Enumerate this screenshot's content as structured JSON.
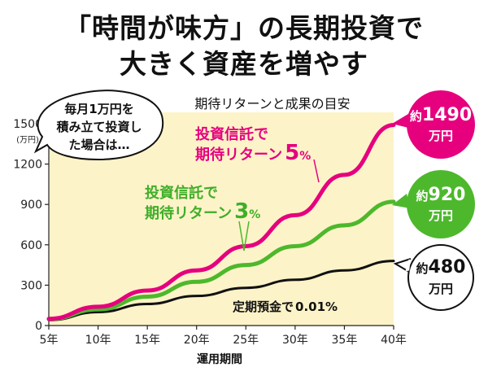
{
  "header": {
    "line1": "「時間が味方」の長期投資で",
    "line2": "大きく資産を増やす"
  },
  "note_bubble": {
    "line1": "毎月1万円を",
    "line2": "積み立て投資し",
    "line3": "た場合は…"
  },
  "chart_data": {
    "type": "line",
    "title": "期待リターンと成果の目安",
    "xlabel": "運用期間",
    "ylabel": "(万円)",
    "x": [
      5,
      10,
      15,
      20,
      25,
      30,
      35,
      40
    ],
    "x_tick_labels": [
      "5年",
      "10年",
      "15年",
      "20年",
      "25年",
      "30年",
      "35年",
      "40年"
    ],
    "y_ticks": [
      "0",
      "300",
      "600",
      "900",
      "1200",
      "1500"
    ],
    "ylim": [
      0,
      1500
    ],
    "xlim": [
      5,
      40
    ],
    "grid": false,
    "background_color": "#fdf3c8",
    "series": [
      {
        "id": "fund5",
        "label_line1": "投資信託で",
        "label_line2": "期待リターン",
        "rate": "5",
        "rate_unit": "%",
        "color": "#e6007e",
        "values": [
          50,
          140,
          260,
          410,
          590,
          820,
          1120,
          1490
        ]
      },
      {
        "id": "fund3",
        "label_line1": "投資信託で",
        "label_line2": "期待リターン",
        "rate": "3",
        "rate_unit": "%",
        "color": "#4db82c",
        "values": [
          48,
          120,
          215,
          325,
          450,
          590,
          745,
          920
        ]
      },
      {
        "id": "deposit",
        "label_prefix": "定期預金で",
        "rate": "0.01",
        "rate_unit": "%",
        "color": "#111111",
        "values": [
          40,
          100,
          160,
          220,
          280,
          340,
          410,
          480
        ]
      }
    ],
    "end_labels": [
      {
        "prefix": "約",
        "value": "1490",
        "unit": "万円"
      },
      {
        "prefix": "約",
        "value": "920",
        "unit": "万円"
      },
      {
        "prefix": "約",
        "value": "480",
        "unit": "万円"
      }
    ]
  }
}
